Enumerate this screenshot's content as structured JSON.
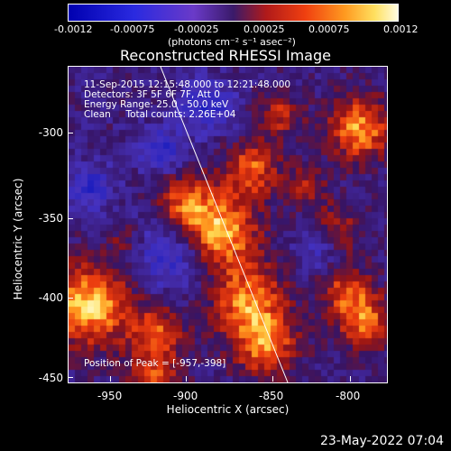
{
  "colorbar": {
    "ticks": [
      "-0.0012",
      "-0.00075",
      "-0.00025",
      "0.00025",
      "0.00075",
      "0.0012"
    ],
    "units": "(photons cm⁻² s⁻¹ asec⁻²)"
  },
  "title": "Reconstructed RHESSI Image",
  "annotations": {
    "time": "11-Sep-2015 12:15:48.000 to 12:21:48.000",
    "detectors": "Detectors: 3F 5F 6F 7F, Att 0",
    "energy": "Energy Range: 25.0 - 50.0 keV",
    "clean": "Clean     Total counts: 2.26E+04",
    "peak": "Position of Peak = [-957,-398]"
  },
  "axes": {
    "xlabel": "Heliocentric X (arcsec)",
    "ylabel": "Heliocentric Y (arcsec)",
    "xticks": [
      "-950",
      "-900",
      "-850",
      "-800"
    ],
    "yticks": [
      "-300",
      "-350",
      "-400",
      "-450"
    ]
  },
  "footer": "23-May-2022 07:04",
  "colors": {
    "background": "#000000",
    "foreground": "#ffffff"
  }
}
